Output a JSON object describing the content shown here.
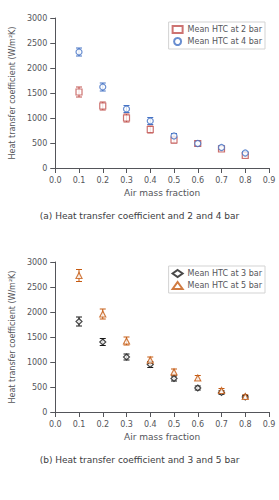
{
  "chart_data": [
    {
      "type": "scatter",
      "title": "(a) Heat transfer coefficient and 2 and 4 bar",
      "xlabel": "Air mass fraction",
      "ylabel": "Heat transfer coefficient (W/m²K)",
      "xlim": [
        0.0,
        0.9
      ],
      "ylim": [
        0,
        3000
      ],
      "xticks": [
        {
          "value": 0.0,
          "label": "0.0"
        },
        0.1,
        0.2,
        0.3,
        0.4,
        0.5,
        0.6,
        0.7,
        0.8,
        0.9
      ],
      "yticks": [
        0,
        500,
        1000,
        1500,
        2000,
        2500,
        3000
      ],
      "grid": false,
      "legend": "upper right",
      "series": [
        {
          "name": "Mean HTC at 2 bar",
          "color": "#c0504d",
          "marker": "square",
          "x": [
            0.1,
            0.2,
            0.3,
            0.4,
            0.5,
            0.6,
            0.7,
            0.8
          ],
          "values": [
            1520,
            1240,
            1000,
            770,
            560,
            490,
            380,
            250
          ],
          "yerr": [
            100,
            80,
            80,
            70,
            60,
            50,
            40,
            30
          ]
        },
        {
          "name": "Mean HTC at 4 bar",
          "color": "#4472c4",
          "marker": "circle",
          "x": [
            0.1,
            0.2,
            0.3,
            0.4,
            0.5,
            0.6,
            0.7,
            0.8
          ],
          "values": [
            2320,
            1620,
            1180,
            940,
            640,
            490,
            410,
            300
          ],
          "yerr": [
            80,
            80,
            70,
            70,
            50,
            50,
            40,
            30
          ]
        }
      ]
    },
    {
      "type": "scatter",
      "title": "(b) Heat transfer coefficient and 3 and 5 bar",
      "xlabel": "Air mass fraction",
      "ylabel": "Heat transfer coefficient (W/m²K)",
      "xlim": [
        0.0,
        0.9
      ],
      "ylim": [
        0,
        3000
      ],
      "xticks": [
        {
          "value": 0.0,
          "label": "0.0"
        },
        0.1,
        0.2,
        0.3,
        0.4,
        0.5,
        0.6,
        0.7,
        0.8,
        0.9
      ],
      "yticks": [
        0,
        500,
        1000,
        1500,
        2000,
        2500,
        3000
      ],
      "grid": false,
      "legend": "upper right",
      "series": [
        {
          "name": "Mean HTC at 3 bar",
          "color": "#1a1a1a",
          "marker": "diamond",
          "x": [
            0.1,
            0.2,
            0.3,
            0.4,
            0.5,
            0.6,
            0.7,
            0.8
          ],
          "values": [
            1810,
            1400,
            1100,
            950,
            670,
            480,
            390,
            300
          ],
          "yerr": [
            90,
            70,
            60,
            60,
            50,
            40,
            35,
            30
          ]
        },
        {
          "name": "Mean HTC at 5 bar",
          "color": "#c55a11",
          "marker": "triangle",
          "x": [
            0.1,
            0.2,
            0.3,
            0.4,
            0.5,
            0.6,
            0.7,
            0.8
          ],
          "values": [
            2730,
            1960,
            1420,
            1040,
            800,
            680,
            430,
            310
          ],
          "yerr": [
            120,
            100,
            80,
            60,
            60,
            50,
            40,
            35
          ]
        }
      ]
    }
  ]
}
